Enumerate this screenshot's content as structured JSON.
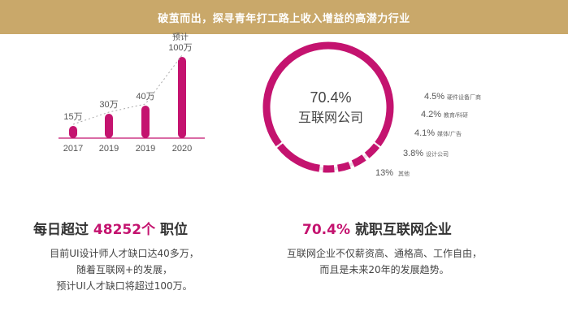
{
  "header": {
    "title": "破茧而出，探寻青年打工路上收入增益的高潜力行业"
  },
  "left_stat": {
    "title_prefix": "每日超过 ",
    "title_highlight": "48252个",
    "title_suffix": " 职位",
    "desc_lines": [
      "目前UI设计师人才缺口达40多万，",
      "随着互联网+的发展，",
      "预计UI人才缺口将超过100万。"
    ]
  },
  "right_stat": {
    "title_highlight": "70.4%",
    "title_suffix": " 就职互联网企业",
    "desc_lines": [
      "互联网企业不仅薪资高、通格高、工作自由，",
      "而且是未来20年的发展趋势。"
    ]
  },
  "colors": {
    "accent": "#c4136f",
    "header_bg": "#c9a86a",
    "ring_light": "#f1dde7"
  },
  "chart_data": [
    {
      "type": "bar",
      "categories": [
        "2017",
        "2019",
        "2019",
        "2020"
      ],
      "values": [
        15,
        30,
        40,
        100
      ],
      "value_labels": [
        "15万",
        "30万",
        "40万",
        "预计100万"
      ],
      "ylim": [
        0,
        100
      ]
    },
    {
      "type": "pie",
      "center_label": [
        "70.4%",
        "互联网公司"
      ],
      "slices": [
        {
          "label": "互联网公司",
          "value": 70.4
        },
        {
          "label": "硬件设备厂商",
          "value": 4.5
        },
        {
          "label": "教育/科研",
          "value": 4.2
        },
        {
          "label": "媒体/广告",
          "value": 4.1
        },
        {
          "label": "设计公司",
          "value": 3.8
        },
        {
          "label": "其他",
          "value": 13
        }
      ],
      "slice_value_labels": [
        "4.5%",
        "4.2%",
        "4.1%",
        "3.8%",
        "13%"
      ]
    }
  ]
}
